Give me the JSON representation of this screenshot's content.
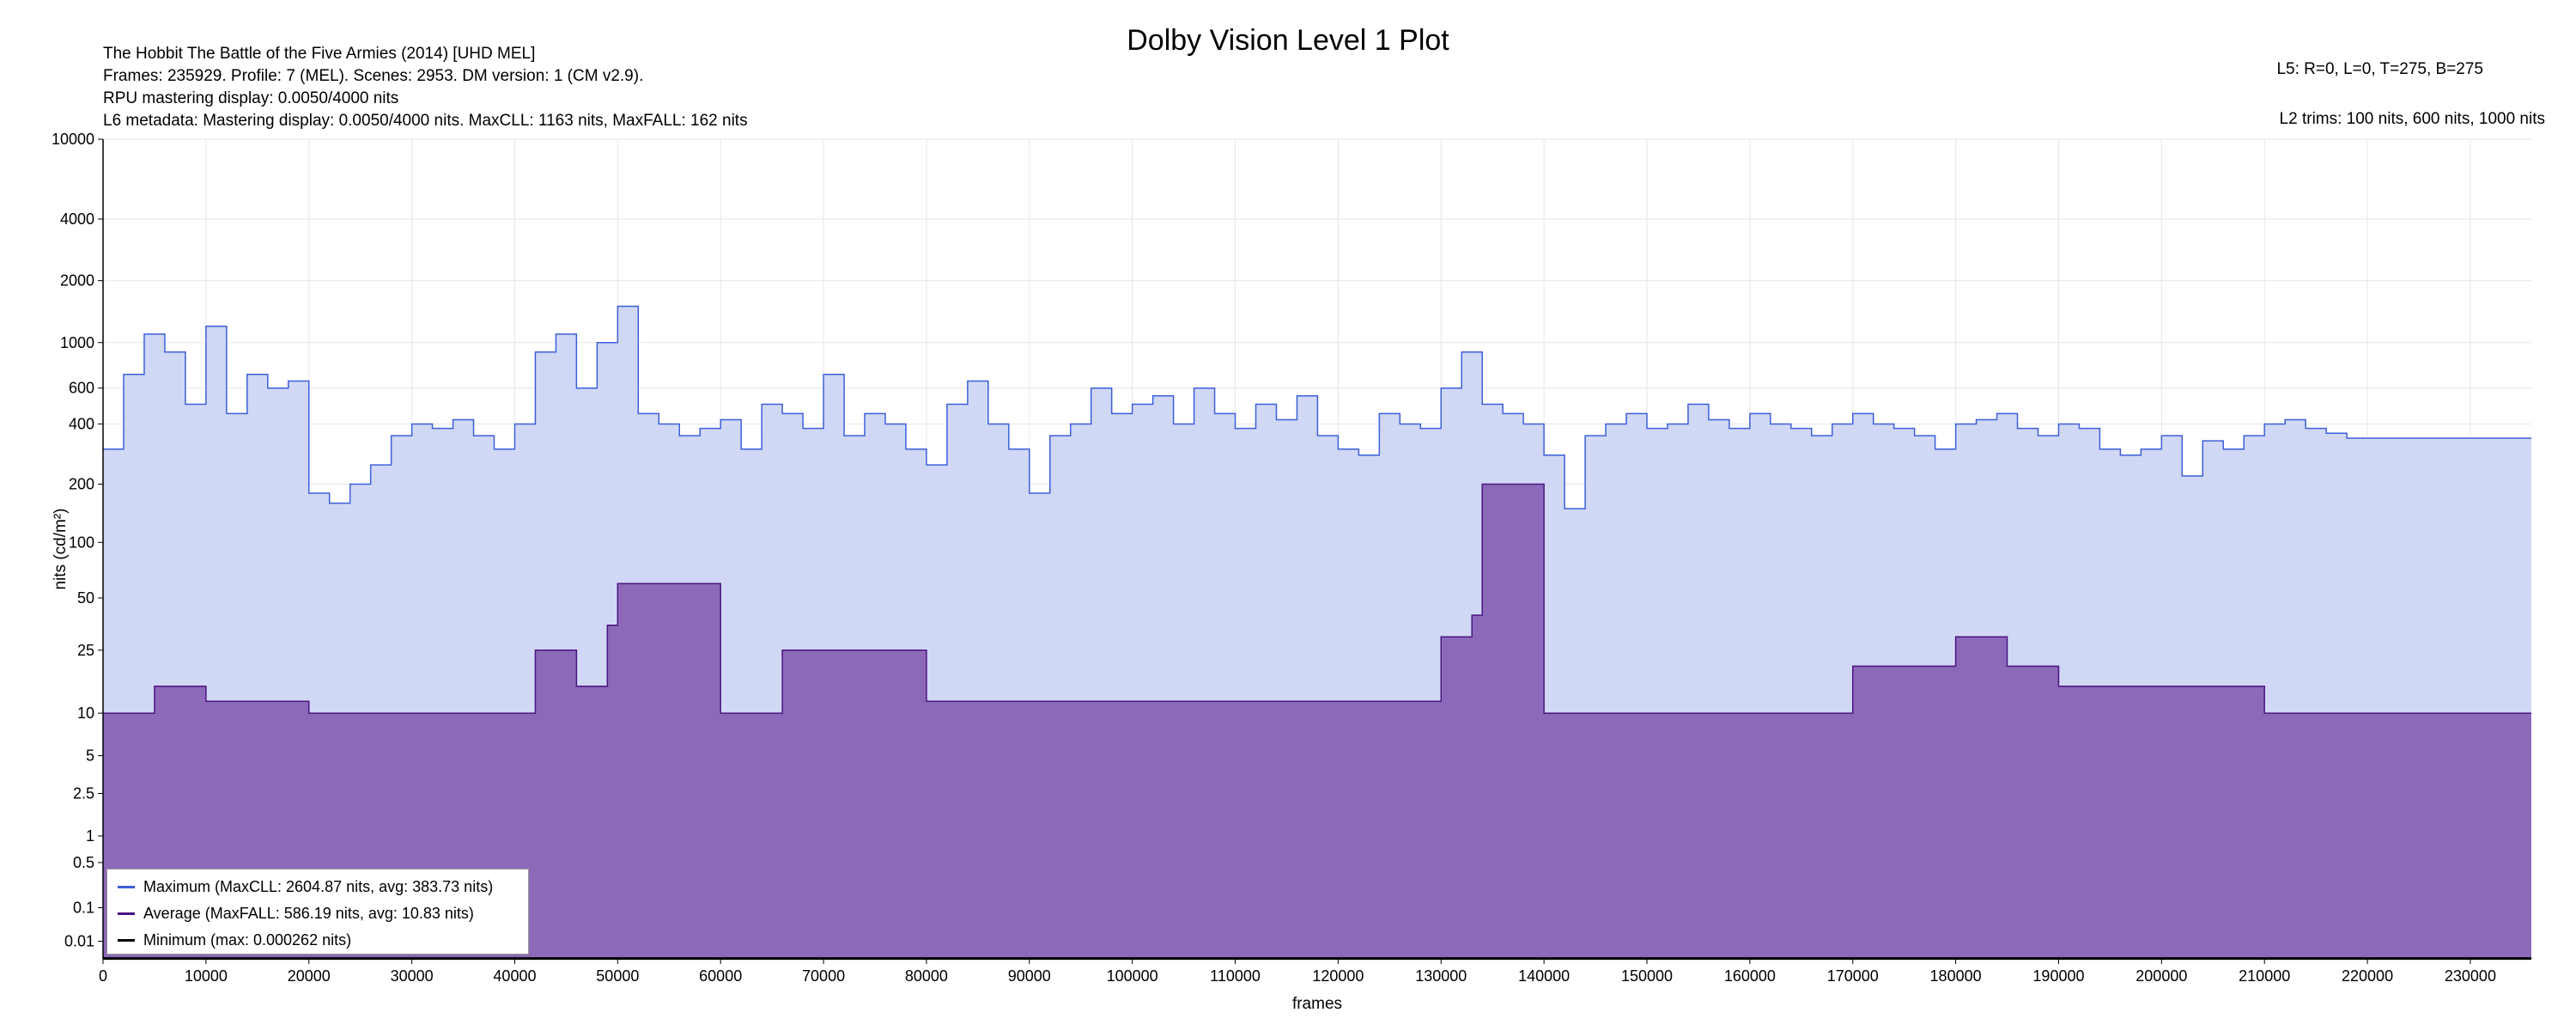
{
  "header": {
    "title": "Dolby Vision Level 1 Plot",
    "info_lines": [
      "The Hobbit The Battle of the Five Armies (2014) [UHD MEL]",
      "Frames: 235929. Profile: 7 (MEL). Scenes: 2953. DM version: 1 (CM v2.9).",
      "RPU mastering display: 0.0050/4000 nits",
      "L6 metadata: Mastering display: 0.0050/4000 nits. MaxCLL: 1163 nits, MaxFALL: 162 nits"
    ],
    "l5": "L5: R=0, L=0, T=275, B=275",
    "l2": "L2 trims: 100 nits, 600 nits, 1000 nits"
  },
  "colors": {
    "max_line": "#3d5fd9",
    "max_fill": "#d0d8f6",
    "avg_line": "#4b1480",
    "avg_fill": "#8d69ba",
    "min_line": "#000000",
    "grid": "#e6e6ea"
  },
  "legend": {
    "max": "Maximum (MaxCLL: 2604.87 nits, avg: 383.73 nits)",
    "avg": "Average (MaxFALL: 586.19 nits, avg: 10.83 nits)",
    "min": "Minimum (max: 0.000262 nits)"
  },
  "chart_data": {
    "type": "area",
    "title": "Dolby Vision Level 1 Plot",
    "xlabel": "frames",
    "ylabel": "nits (cd/m²)",
    "xlim": [
      0,
      235929
    ],
    "ylim": [
      0.005,
      10000
    ],
    "y_scale": "perceptual (PQ)",
    "grid": true,
    "legend_position": "bottom-left",
    "x_ticks": [
      0,
      10000,
      20000,
      30000,
      40000,
      50000,
      60000,
      70000,
      80000,
      90000,
      100000,
      110000,
      120000,
      130000,
      140000,
      150000,
      160000,
      170000,
      180000,
      190000,
      200000,
      210000,
      220000,
      230000
    ],
    "y_ticks": [
      0.01,
      0.1,
      0.5,
      1,
      2.5,
      5,
      10,
      25,
      50,
      100,
      200,
      400,
      600,
      1000,
      2000,
      4000,
      10000
    ],
    "y_tick_labels": [
      "0.01",
      "0.1",
      "0.5",
      "1",
      "2.5",
      "5",
      "10",
      "25",
      "50",
      "100",
      "200",
      "400",
      "600",
      "1000",
      "2000",
      "4000",
      "10000"
    ],
    "series": [
      {
        "name": "Maximum (MaxCLL: 2604.87 nits, avg: 383.73 nits)",
        "x": [
          0,
          2000,
          4000,
          6000,
          8000,
          10000,
          12000,
          14000,
          16000,
          18000,
          20000,
          22000,
          24000,
          26000,
          28000,
          30000,
          32000,
          34000,
          36000,
          38000,
          40000,
          42000,
          44000,
          46000,
          48000,
          50000,
          52000,
          54000,
          56000,
          58000,
          60000,
          62000,
          64000,
          66000,
          68000,
          70000,
          72000,
          74000,
          76000,
          78000,
          80000,
          82000,
          84000,
          86000,
          88000,
          90000,
          92000,
          94000,
          96000,
          98000,
          100000,
          102000,
          104000,
          106000,
          108000,
          110000,
          112000,
          114000,
          116000,
          118000,
          120000,
          122000,
          124000,
          126000,
          128000,
          130000,
          132000,
          134000,
          136000,
          138000,
          140000,
          142000,
          144000,
          146000,
          148000,
          150000,
          152000,
          154000,
          156000,
          158000,
          160000,
          162000,
          164000,
          166000,
          168000,
          170000,
          172000,
          174000,
          176000,
          178000,
          180000,
          182000,
          184000,
          186000,
          188000,
          190000,
          192000,
          194000,
          196000,
          198000,
          200000,
          202000,
          204000,
          206000,
          208000,
          210000,
          212000,
          214000,
          216000,
          218000,
          220000,
          225000,
          230000,
          235929
        ],
        "values": [
          300,
          700,
          1100,
          900,
          500,
          1200,
          450,
          700,
          600,
          650,
          180,
          160,
          200,
          250,
          350,
          400,
          380,
          420,
          350,
          300,
          400,
          900,
          1100,
          600,
          1000,
          1500,
          450,
          400,
          350,
          380,
          420,
          300,
          500,
          450,
          380,
          700,
          350,
          450,
          400,
          300,
          250,
          500,
          650,
          400,
          300,
          180,
          350,
          400,
          600,
          450,
          500,
          550,
          400,
          600,
          450,
          380,
          500,
          420,
          550,
          350,
          300,
          280,
          450,
          400,
          380,
          600,
          900,
          500,
          450,
          400,
          280,
          150,
          350,
          400,
          450,
          380,
          400,
          500,
          420,
          380,
          450,
          400,
          380,
          350,
          400,
          450,
          400,
          380,
          350,
          300,
          400,
          420,
          450,
          380,
          350,
          400,
          380,
          300,
          280,
          300,
          350,
          220,
          330,
          300,
          350,
          400,
          420,
          380,
          360,
          340,
          340,
          340,
          340,
          340
        ]
      },
      {
        "name": "Average (MaxFALL: 586.19 nits, avg: 10.83 nits)",
        "x": [
          0,
          5000,
          10000,
          15000,
          20000,
          30000,
          40000,
          42000,
          46000,
          49000,
          50000,
          60000,
          66000,
          80000,
          100000,
          120000,
          130000,
          133000,
          134000,
          140000,
          170000,
          180000,
          185000,
          190000,
          210000,
          235929
        ],
        "values": [
          10,
          15,
          12,
          12,
          10,
          10,
          10,
          25,
          15,
          35,
          60,
          10,
          25,
          12,
          12,
          12,
          30,
          40,
          200,
          10,
          20,
          30,
          20,
          15,
          10,
          10
        ]
      },
      {
        "name": "Minimum (max: 0.000262 nits)",
        "x": [
          0,
          235929
        ],
        "values": [
          1e-05,
          1e-05
        ]
      }
    ]
  }
}
